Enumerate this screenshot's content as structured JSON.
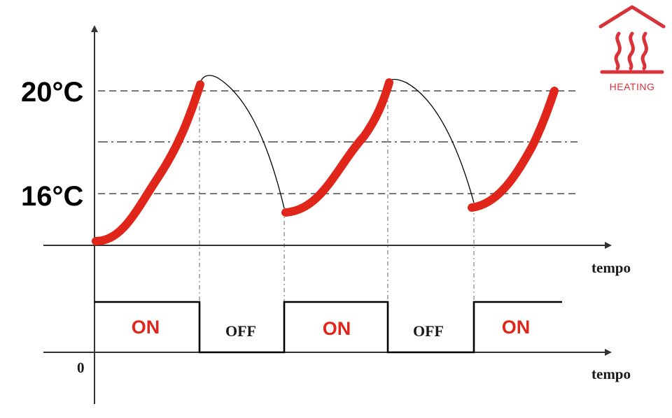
{
  "temperature_labels": {
    "high": "20°C",
    "low": "16°C"
  },
  "time_axis_label": "tempo",
  "origin_label": "0",
  "states": [
    "ON",
    "OFF",
    "ON",
    "OFF",
    "ON"
  ],
  "icon": {
    "name": "heating-icon",
    "label": "HEATING",
    "color": "#d9333a"
  },
  "colors": {
    "heating_curve": "#e0251b",
    "cooling_curve": "#000000",
    "dashed_line": "#777777"
  }
}
